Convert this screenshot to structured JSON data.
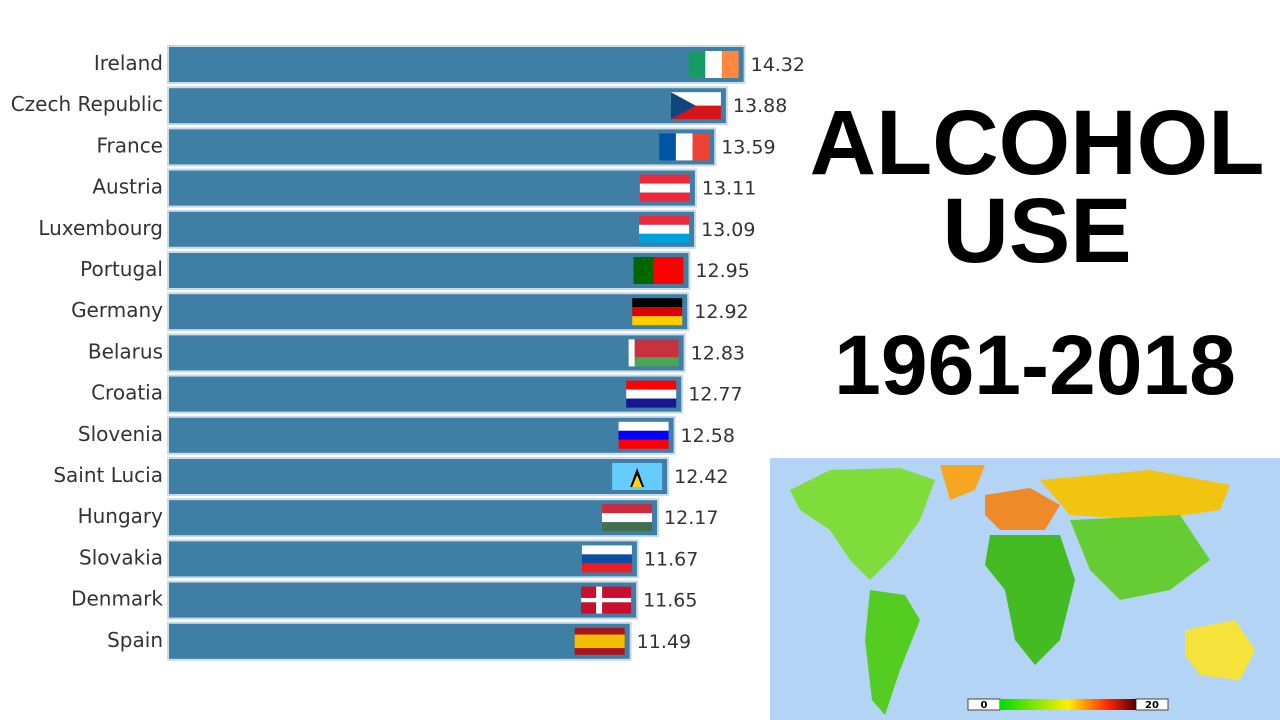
{
  "chart_data": {
    "type": "bar",
    "orientation": "horizontal",
    "title": "ALCOHOL USE",
    "subtitle": "1961-2018",
    "categories": [
      "Ireland",
      "Czech Republic",
      "France",
      "Austria",
      "Luxembourg",
      "Portugal",
      "Germany",
      "Belarus",
      "Croatia",
      "Slovenia",
      "Saint Lucia",
      "Hungary",
      "Slovakia",
      "Denmark",
      "Spain"
    ],
    "values": [
      14.32,
      13.88,
      13.59,
      13.11,
      13.09,
      12.95,
      12.92,
      12.83,
      12.77,
      12.58,
      12.42,
      12.17,
      11.67,
      11.65,
      11.49
    ],
    "color": "#3f7fa6",
    "xlim": [
      0,
      15
    ],
    "map_legend": {
      "ticks": [
        0,
        20
      ]
    }
  }
}
